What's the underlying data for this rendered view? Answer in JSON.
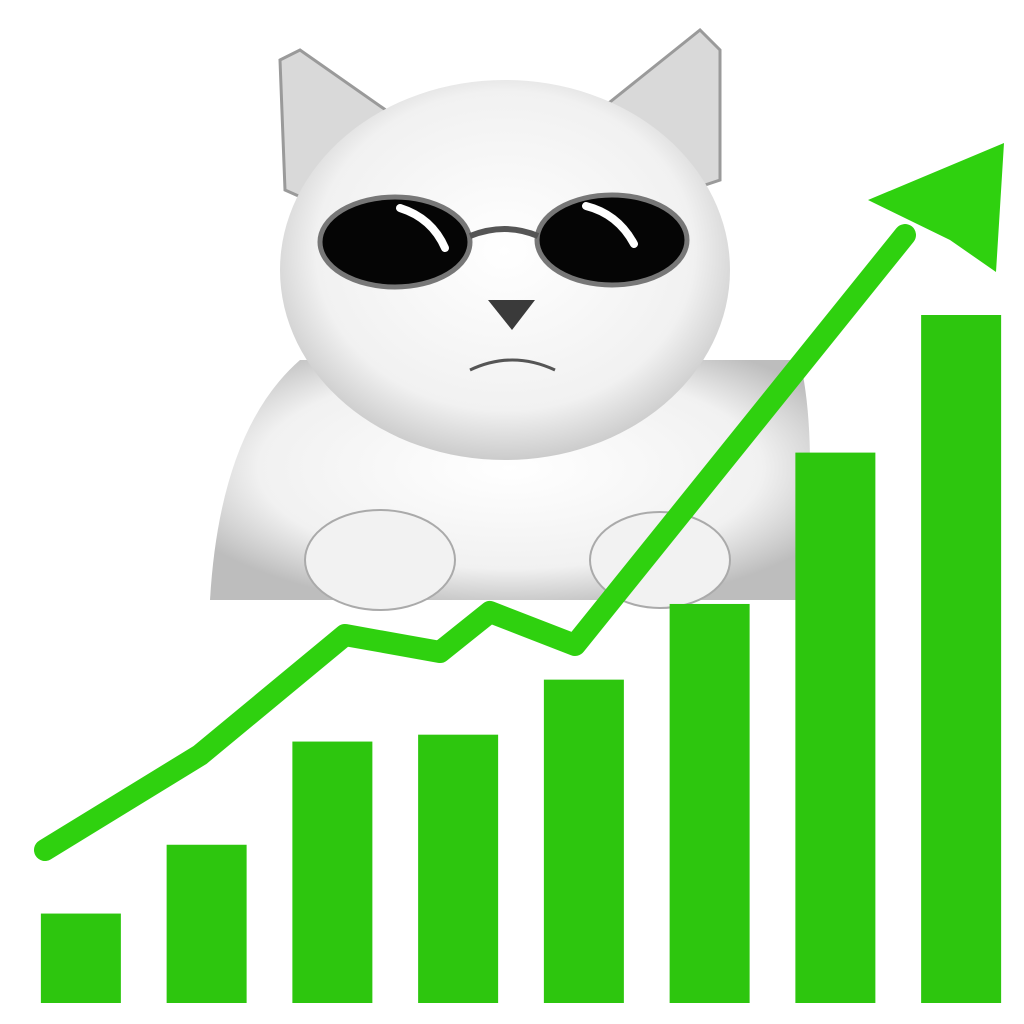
{
  "chart_data": {
    "type": "bar",
    "categories": [
      null,
      null,
      null,
      null,
      null,
      null,
      null,
      null
    ],
    "values": [
      13,
      23,
      38,
      39,
      47,
      58,
      80,
      100
    ],
    "color": "#2dc60e",
    "ylim": [
      0,
      100
    ]
  }
}
